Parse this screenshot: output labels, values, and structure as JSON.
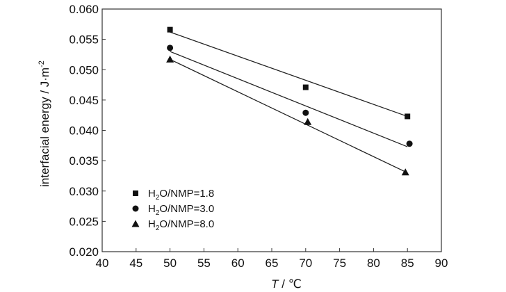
{
  "chart_data": {
    "type": "scatter",
    "xlabel_italic": "T",
    "xlabel_rest": " / ℃",
    "ylabel_main": "interfacial energy / J·m",
    "ylabel_sup": "-2",
    "xlim": [
      40,
      90
    ],
    "ylim": [
      0.02,
      0.06
    ],
    "x_ticks": [
      40,
      45,
      50,
      55,
      60,
      65,
      70,
      75,
      80,
      85,
      90
    ],
    "x_tick_labels": [
      "40",
      "45",
      "50",
      "55",
      "60",
      "65",
      "70",
      "75",
      "80",
      "85",
      "90"
    ],
    "y_ticks": [
      0.02,
      0.025,
      0.03,
      0.035,
      0.04,
      0.045,
      0.05,
      0.055,
      0.06
    ],
    "y_tick_labels": [
      "0.020",
      "0.025",
      "0.030",
      "0.035",
      "0.040",
      "0.045",
      "0.050",
      "0.055",
      "0.060"
    ],
    "grid": false,
    "legend_position": "bottom-left",
    "series": [
      {
        "name_prefix": "H",
        "name_sub": "2",
        "name_suffix": "O/NMP=1.8",
        "marker": "square",
        "x": [
          50,
          70,
          85
        ],
        "y": [
          0.0566,
          0.0471,
          0.0423
        ],
        "fit": {
          "x": [
            50,
            85
          ],
          "y": [
            0.0562,
            0.0423
          ]
        }
      },
      {
        "name_prefix": "H",
        "name_sub": "2",
        "name_suffix": "O/NMP=3.0",
        "marker": "circle",
        "x": [
          50,
          70,
          85.3
        ],
        "y": [
          0.0536,
          0.0429,
          0.0378
        ],
        "fit": {
          "x": [
            50,
            85
          ],
          "y": [
            0.053,
            0.0373
          ]
        }
      },
      {
        "name_prefix": "H",
        "name_sub": "2",
        "name_suffix": "O/NMP=8.0",
        "marker": "triangle",
        "x": [
          50,
          70.3,
          84.7
        ],
        "y": [
          0.0517,
          0.0414,
          0.0331
        ],
        "fit": {
          "x": [
            50,
            85
          ],
          "y": [
            0.0517,
            0.033
          ]
        }
      }
    ],
    "colors": {
      "marker": "#111111",
      "line": "#222222",
      "axis": "#333333"
    }
  }
}
